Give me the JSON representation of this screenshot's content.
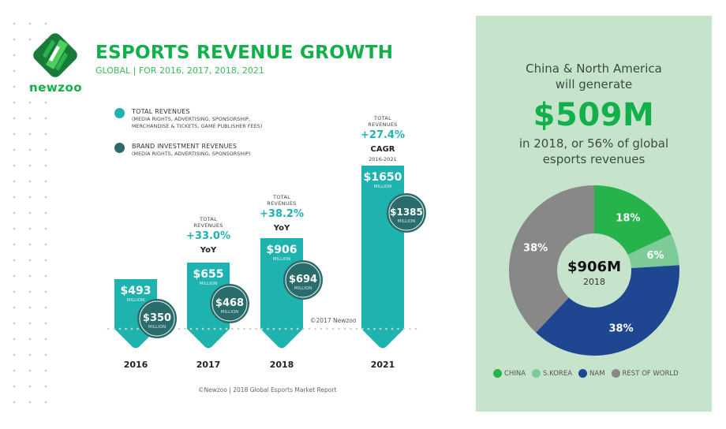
{
  "header": {
    "title": "ESPORTS REVENUE GROWTH",
    "subtitle": "GLOBAL | FOR 2016, 2017, 2018, 2021",
    "brand": "newzoo"
  },
  "legend": {
    "items": [
      {
        "label": "TOTAL REVENUES",
        "sub1": "(MEDIA RIGHTS, ADVERTISING, SPONSORSHIP,",
        "sub2": "MERCHANDISE & TICKETS, GAME PUBLISHER FEES)",
        "color": "#1fb3b0"
      },
      {
        "label": "BRAND INVESTMENT REVENUES",
        "sub1": "(MEDIA RIGHTS, ADVERTISING, SPONSORSHIP)",
        "sub2": "",
        "color": "#2a6b6b"
      }
    ]
  },
  "colors": {
    "total": "#1fb3b0",
    "brand": "#2a6b6b",
    "accent_green": "#12b04a",
    "panel_bg": "#c6e4cc"
  },
  "chart_data": [
    {
      "type": "bar",
      "title": "ESPORTS REVENUE GROWTH",
      "subtitle": "GLOBAL | FOR 2016, 2017, 2018, 2021",
      "categories": [
        "2016",
        "2017",
        "2018",
        "2021"
      ],
      "unit_label": "MILLION",
      "series": [
        {
          "name": "TOTAL REVENUES",
          "values": [
            493,
            655,
            906,
            1650
          ],
          "labels": [
            "$493",
            "$655",
            "$906",
            "$1650"
          ]
        },
        {
          "name": "BRAND INVESTMENT REVENUES",
          "values": [
            350,
            468,
            694,
            1385
          ],
          "labels": [
            "$350",
            "$468",
            "$694",
            "$1385"
          ]
        }
      ],
      "annotations": [
        {
          "category": "2017",
          "caption1": "TOTAL",
          "caption2": "REVENUES",
          "value": "+33.0%",
          "kind": "YoY",
          "range": ""
        },
        {
          "category": "2018",
          "caption1": "TOTAL",
          "caption2": "REVENUES",
          "value": "+38.2%",
          "kind": "YoY",
          "range": ""
        },
        {
          "category": "2021",
          "caption1": "TOTAL",
          "caption2": "REVENUES",
          "value": "+27.4%",
          "kind": "CAGR",
          "range": "2016-2021"
        }
      ],
      "watermark": "©2017 Newzoo",
      "source": "©Newzoo | 2018 Global Esports Market Report",
      "legend": "top-left"
    },
    {
      "type": "pie",
      "title": "$906M",
      "subtitle": "2018",
      "categories": [
        "CHINA",
        "S.KOREA",
        "NAM",
        "REST OF WORLD"
      ],
      "values": [
        18,
        6,
        38,
        38
      ],
      "labels": [
        "18%",
        "6%",
        "38%",
        "38%"
      ],
      "colors": [
        "#27b34b",
        "#7ccb98",
        "#1f4690",
        "#888888"
      ],
      "legend": "bottom"
    }
  ],
  "panel": {
    "line1": "China & North America",
    "line2": "will generate",
    "big": "$509M",
    "line3": "in 2018, or 56% of global",
    "line4": "esports revenues"
  }
}
